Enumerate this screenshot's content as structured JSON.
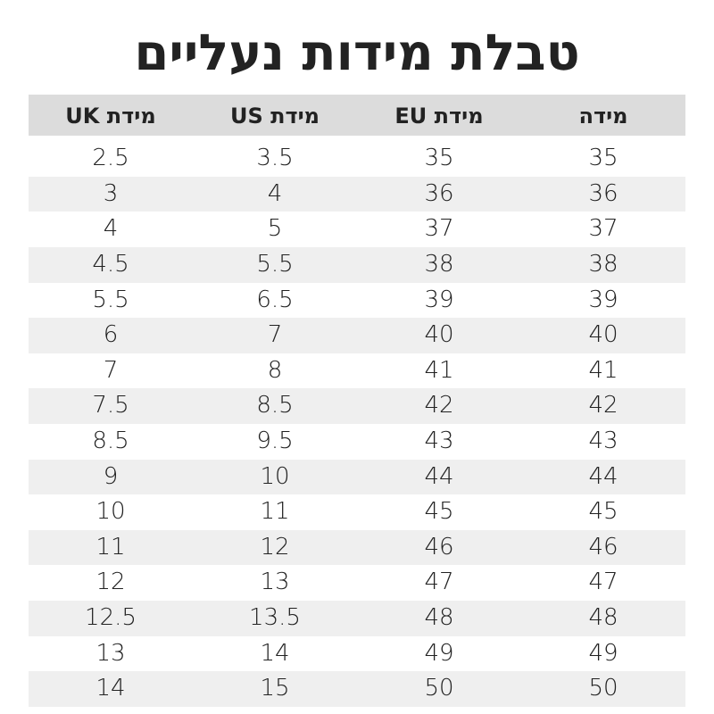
{
  "title": "טבלת מידות נעליים",
  "table": {
    "header": [
      "מידה",
      "מידת EU",
      "מידת US",
      "מידת UK"
    ],
    "rows": [
      [
        35,
        35,
        3.5,
        2.5
      ],
      [
        36,
        36,
        4,
        3
      ],
      [
        37,
        37,
        5,
        4
      ],
      [
        38,
        38,
        5.5,
        4.5
      ],
      [
        39,
        39,
        6.5,
        5.5
      ],
      [
        40,
        40,
        7,
        6
      ],
      [
        41,
        41,
        8,
        7
      ],
      [
        42,
        42,
        8.5,
        7.5
      ],
      [
        43,
        43,
        9.5,
        8.5
      ],
      [
        44,
        44,
        10,
        9
      ],
      [
        45,
        45,
        11,
        10
      ],
      [
        46,
        46,
        12,
        11
      ],
      [
        47,
        47,
        13,
        12
      ],
      [
        48,
        48,
        13.5,
        12.5
      ],
      [
        49,
        49,
        14,
        13
      ],
      [
        50,
        50,
        15,
        14
      ]
    ]
  }
}
